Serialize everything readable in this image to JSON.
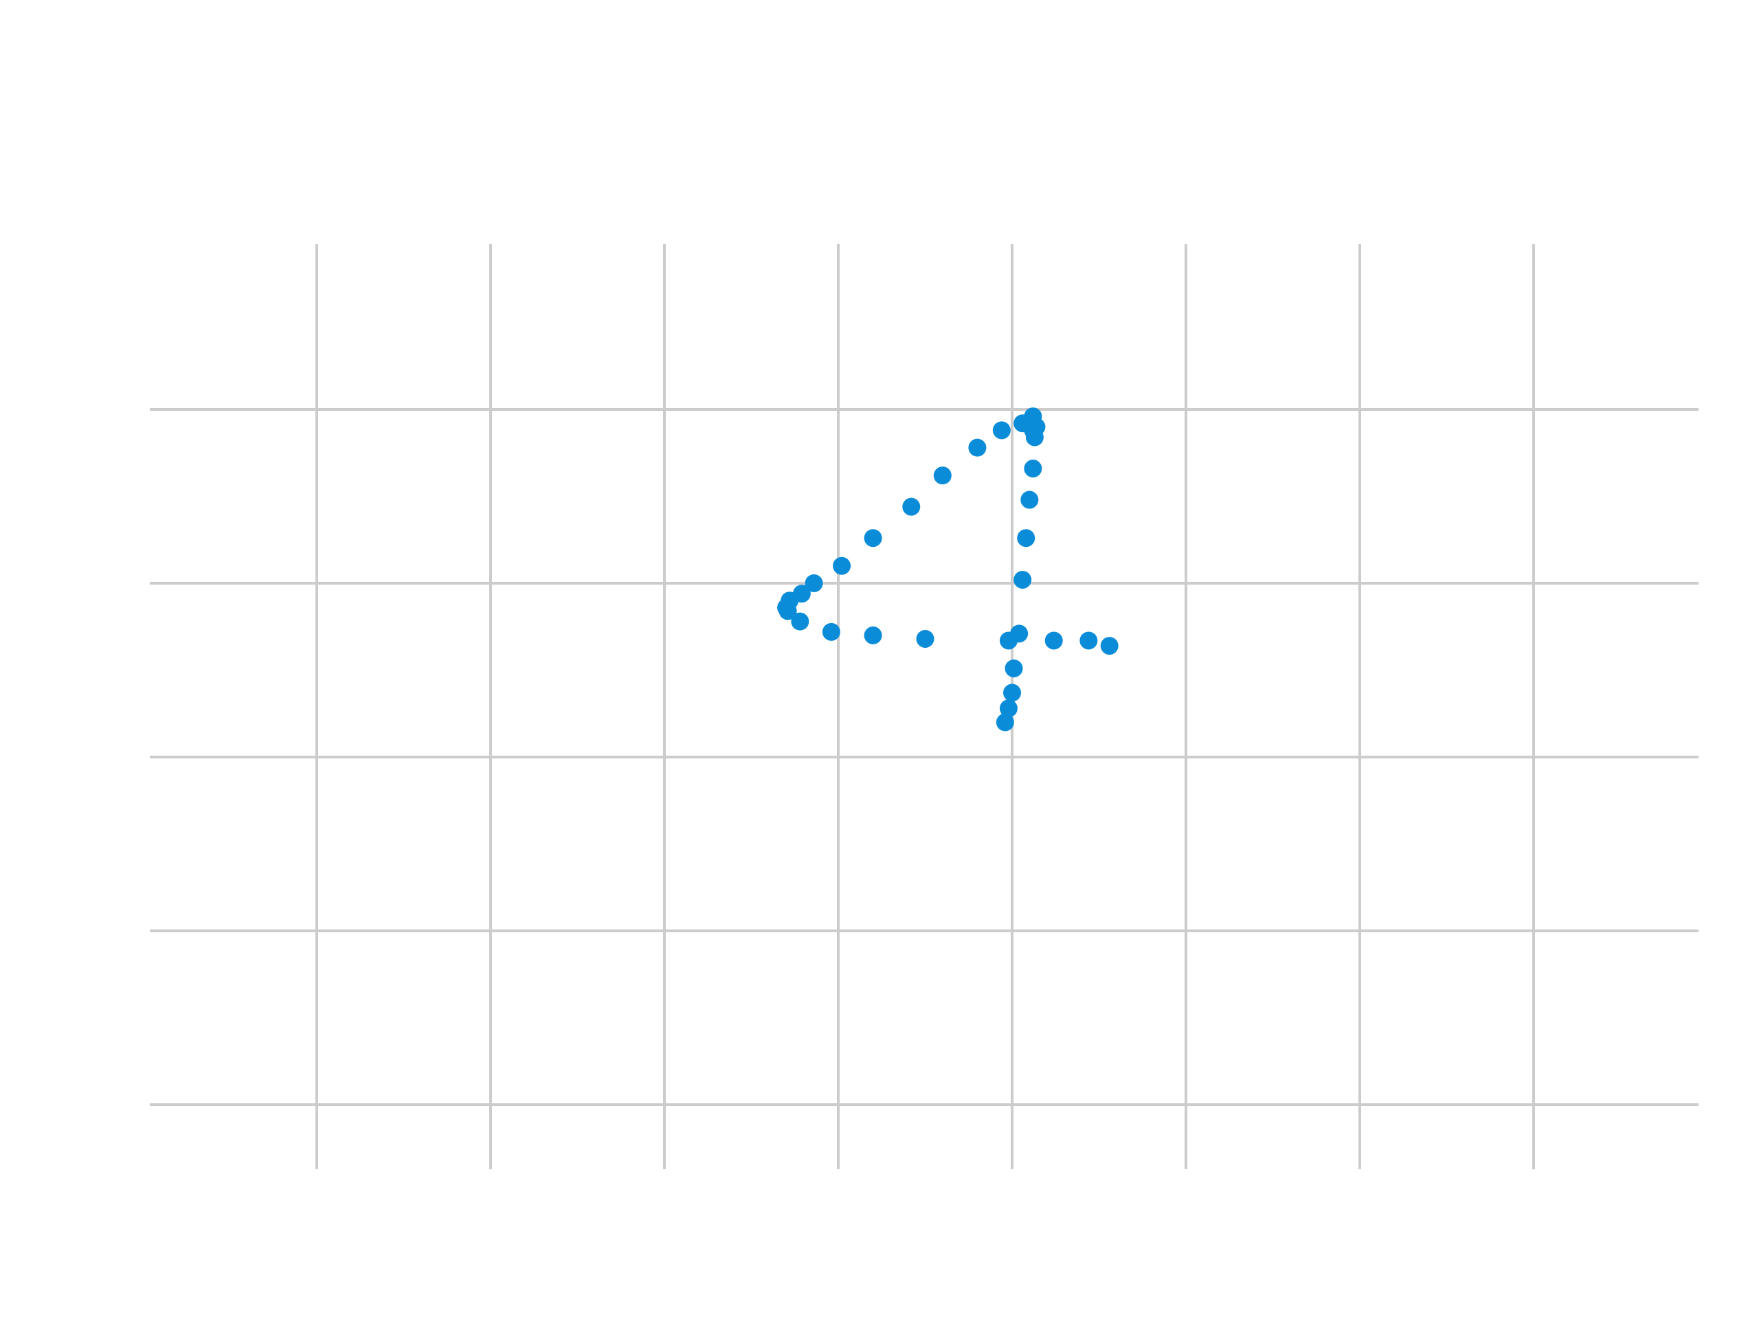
{
  "chart_data": {
    "type": "scatter",
    "title": "",
    "xlabel": "",
    "ylabel": "",
    "grid": true,
    "legend": "none",
    "xlim": [
      -0.96,
      3.5
    ],
    "ylim": [
      -3.2,
      2.1
    ],
    "x_grid": [
      0,
      0.5,
      1,
      1.5,
      2,
      2.5,
      3,
      3.5
    ],
    "y_grid": [
      1.5,
      1,
      0.5,
      0,
      -0.5,
      -1.0,
      -1.5,
      -2.0,
      -2.5,
      -3.0
    ],
    "series": [
      {
        "color": "#0a8cd8",
        "points": [
          {
            "x": 2.06,
            "y": 0.98
          },
          {
            "x": 2.03,
            "y": 0.96
          },
          {
            "x": 2.07,
            "y": 0.95
          },
          {
            "x": 2.06,
            "y": 0.94
          },
          {
            "x": 2.065,
            "y": 0.92
          },
          {
            "x": 1.97,
            "y": 0.94
          },
          {
            "x": 1.9,
            "y": 0.89
          },
          {
            "x": 1.8,
            "y": 0.81
          },
          {
            "x": 1.71,
            "y": 0.72
          },
          {
            "x": 1.6,
            "y": 0.63
          },
          {
            "x": 1.51,
            "y": 0.55
          },
          {
            "x": 1.43,
            "y": 0.5
          },
          {
            "x": 1.395,
            "y": 0.47
          },
          {
            "x": 1.36,
            "y": 0.45
          },
          {
            "x": 1.35,
            "y": 0.43
          },
          {
            "x": 1.355,
            "y": 0.42
          },
          {
            "x": 1.39,
            "y": 0.39
          },
          {
            "x": 1.48,
            "y": 0.36
          },
          {
            "x": 1.6,
            "y": 0.35
          },
          {
            "x": 1.75,
            "y": 0.34
          },
          {
            "x": 1.99,
            "y": 0.335
          },
          {
            "x": 2.02,
            "y": 0.355
          },
          {
            "x": 2.12,
            "y": 0.335
          },
          {
            "x": 2.22,
            "y": 0.335
          },
          {
            "x": 2.28,
            "y": 0.32
          },
          {
            "x": 2.06,
            "y": 0.83
          },
          {
            "x": 2.05,
            "y": 0.74
          },
          {
            "x": 2.04,
            "y": 0.63
          },
          {
            "x": 2.03,
            "y": 0.51
          },
          {
            "x": 2.005,
            "y": 0.255
          },
          {
            "x": 2.0,
            "y": 0.185
          },
          {
            "x": 1.99,
            "y": 0.14
          },
          {
            "x": 1.98,
            "y": 0.1
          }
        ]
      }
    ]
  }
}
